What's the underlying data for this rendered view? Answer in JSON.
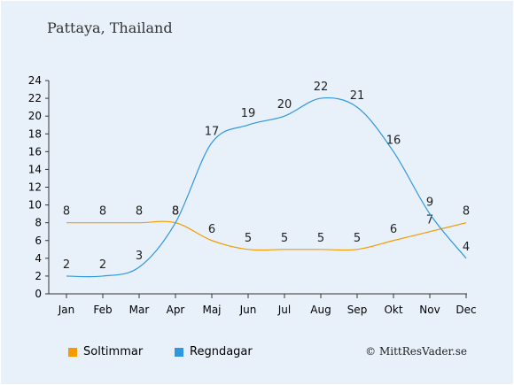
{
  "chart_title": "Pattaya, Thailand",
  "credit": "© MittResVader.se",
  "chart_data": {
    "type": "line",
    "categories": [
      "Jan",
      "Feb",
      "Mar",
      "Apr",
      "Maj",
      "Jun",
      "Jul",
      "Aug",
      "Sep",
      "Okt",
      "Nov",
      "Dec"
    ],
    "series": [
      {
        "name": "Soltimmar",
        "color": "#f59b00",
        "values": [
          8,
          8,
          8,
          8,
          6,
          5,
          5,
          5,
          5,
          6,
          7,
          8
        ]
      },
      {
        "name": "Regndagar",
        "color": "#2e97e0",
        "values": [
          2,
          2,
          3,
          8,
          17,
          19,
          20,
          22,
          21,
          16,
          9,
          4
        ]
      }
    ],
    "yticks": [
      0,
      2,
      4,
      6,
      8,
      10,
      12,
      14,
      16,
      18,
      20,
      22,
      24
    ],
    "ylim": [
      0,
      24
    ],
    "legend_position": "bottom-left",
    "grid": false
  }
}
